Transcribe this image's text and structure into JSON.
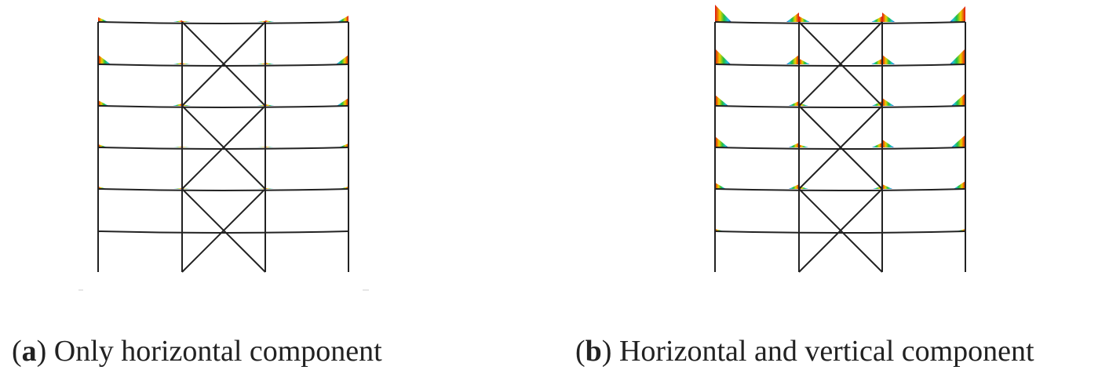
{
  "panels": [
    {
      "caption": [
        "(",
        "a",
        ") Only horizontal component"
      ]
    },
    {
      "caption": [
        "(",
        "b",
        ") Horizontal and vertical component"
      ]
    }
  ]
}
